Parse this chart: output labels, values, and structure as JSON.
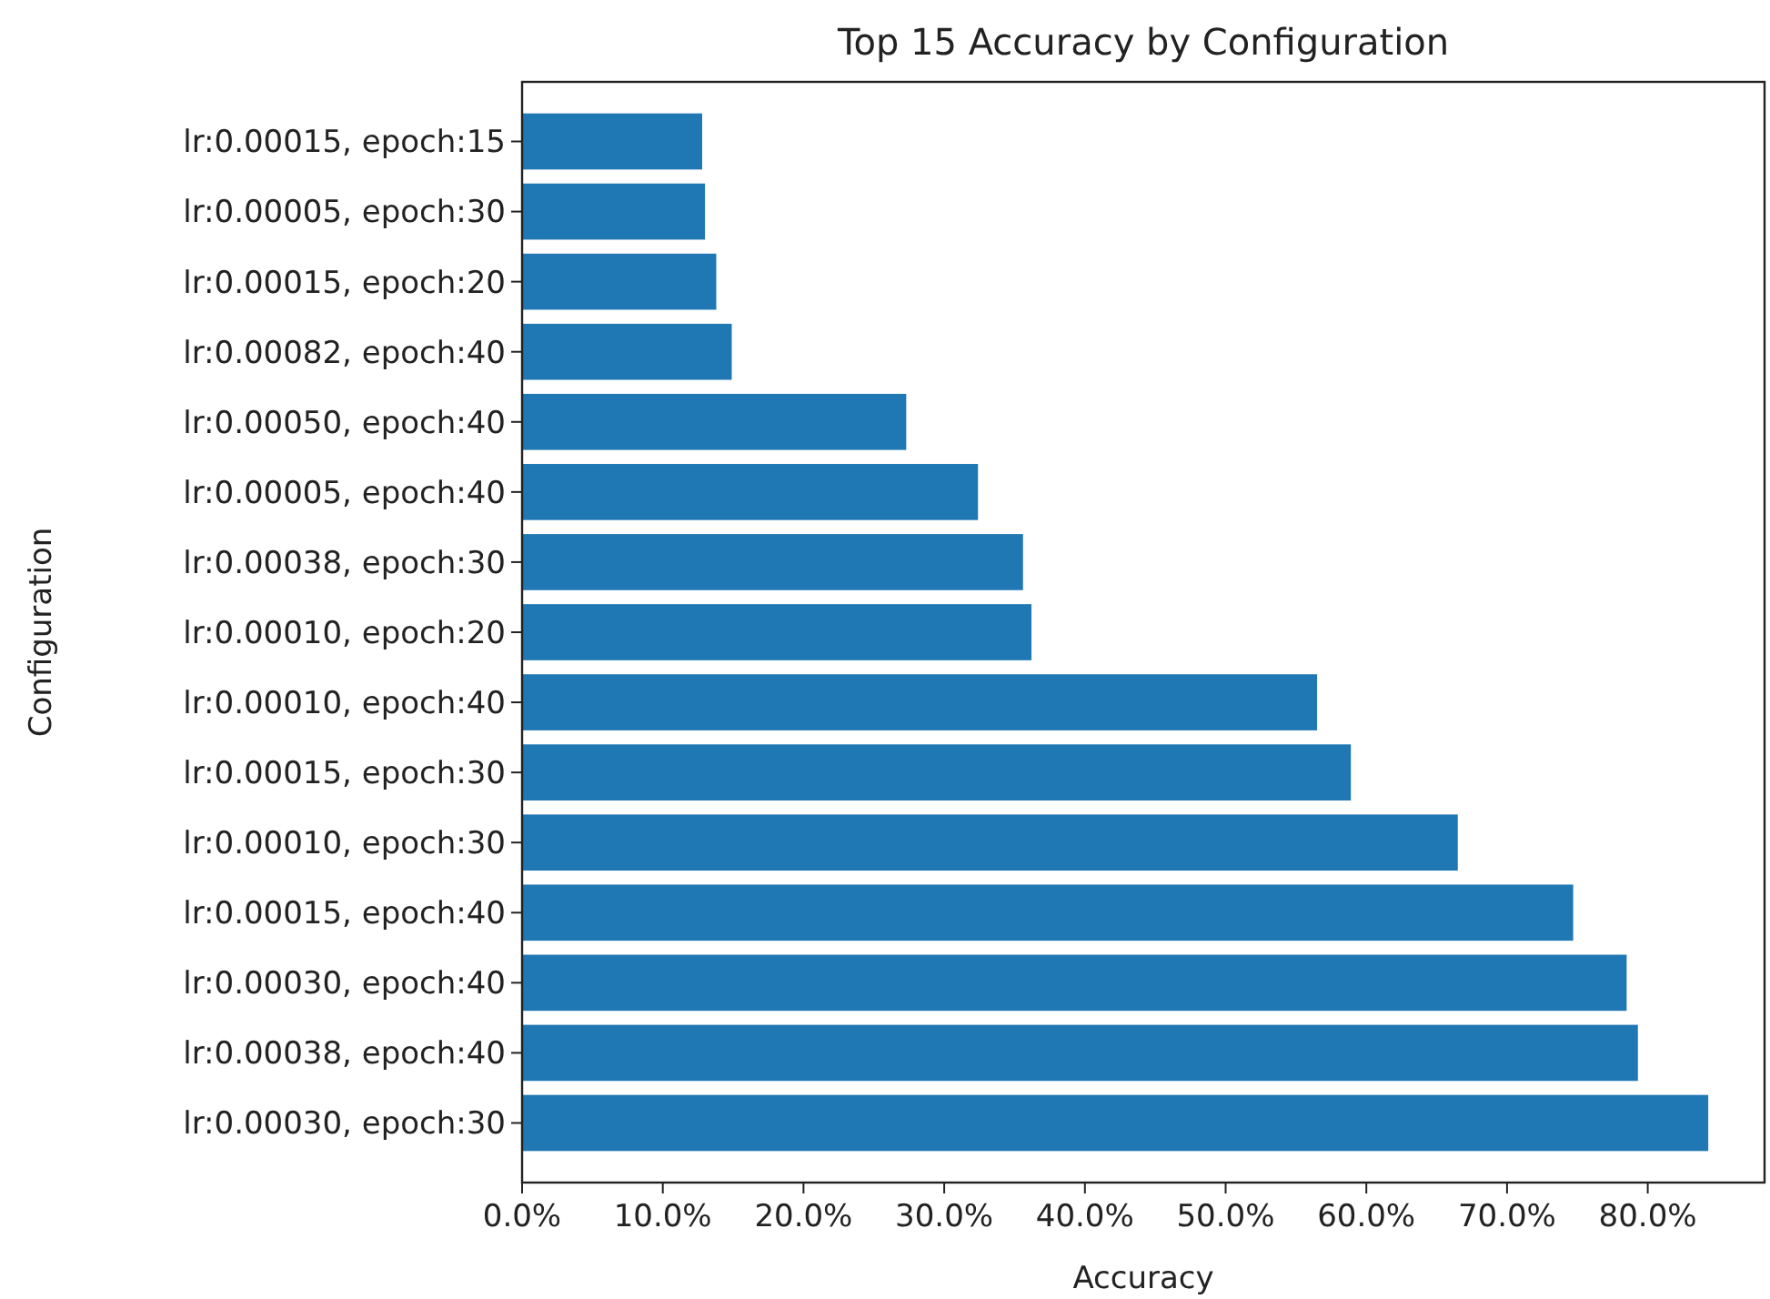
{
  "chart_data": {
    "type": "bar",
    "orientation": "horizontal",
    "title": "Top 15 Accuracy by Configuration",
    "xlabel": "Accuracy",
    "ylabel": "Configuration",
    "categories": [
      "lr:0.00015, epoch:15",
      "lr:0.00005, epoch:30",
      "lr:0.00015, epoch:20",
      "lr:0.00082, epoch:40",
      "lr:0.00050, epoch:40",
      "lr:0.00005, epoch:40",
      "lr:0.00038, epoch:30",
      "lr:0.00010, epoch:20",
      "lr:0.00010, epoch:40",
      "lr:0.00015, epoch:30",
      "lr:0.00010, epoch:30",
      "lr:0.00015, epoch:40",
      "lr:0.00030, epoch:40",
      "lr:0.00038, epoch:40",
      "lr:0.00030, epoch:30"
    ],
    "values": [
      12.8,
      13.0,
      13.8,
      14.9,
      27.3,
      32.4,
      35.6,
      36.2,
      56.5,
      58.9,
      66.5,
      74.7,
      78.5,
      79.3,
      84.3
    ],
    "color": "#1f77b4",
    "xlim": [
      0,
      88.3
    ],
    "xticks": [
      {
        "value": 0,
        "label": "0.0%"
      },
      {
        "value": 10,
        "label": "10.0%"
      },
      {
        "value": 20,
        "label": "20.0%"
      },
      {
        "value": 30,
        "label": "30.0%"
      },
      {
        "value": 40,
        "label": "40.0%"
      },
      {
        "value": 50,
        "label": "50.0%"
      },
      {
        "value": 60,
        "label": "60.0%"
      },
      {
        "value": 70,
        "label": "70.0%"
      },
      {
        "value": 80,
        "label": "80.0%"
      }
    ],
    "grid": false
  }
}
